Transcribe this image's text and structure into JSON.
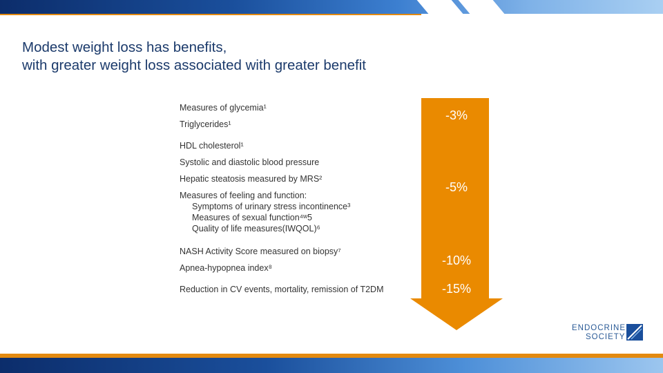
{
  "title": {
    "line1": "Modest weight loss has benefits,",
    "line2": "with greater weight loss associated with greater benefit"
  },
  "items": {
    "glycemia": "Measures of glycemia¹",
    "triglycerides": "Triglycerides¹",
    "hdl": "HDL cholesterol¹",
    "bp": "Systolic and diastolic blood pressure",
    "hepatic": "Hepatic steatosis measured by MRS²",
    "feeling": "Measures of feeling and function:",
    "urinary": "Symptoms of urinary stress incontinence³",
    "sexual": "Measures of sexual function⁴ʷ5",
    "qol": "Quality of life measures(IWQOL)⁶",
    "nash": "NASH Activity Score measured on biopsy⁷",
    "apnea": "Apnea-hypopnea index⁸",
    "cv": "Reduction in CV events, mortality, remission of T2DM"
  },
  "thresholds": [
    "-3%",
    "-5%",
    "-10%",
    "-15%"
  ],
  "logo": {
    "line1": "ENDOCRINE",
    "line2": "SOCIETY"
  },
  "colors": {
    "title": "#1b3a6b",
    "arrow": "#ea8a00",
    "accent_orange": "#e38a10",
    "brand_blue": "#1a4f9c"
  }
}
